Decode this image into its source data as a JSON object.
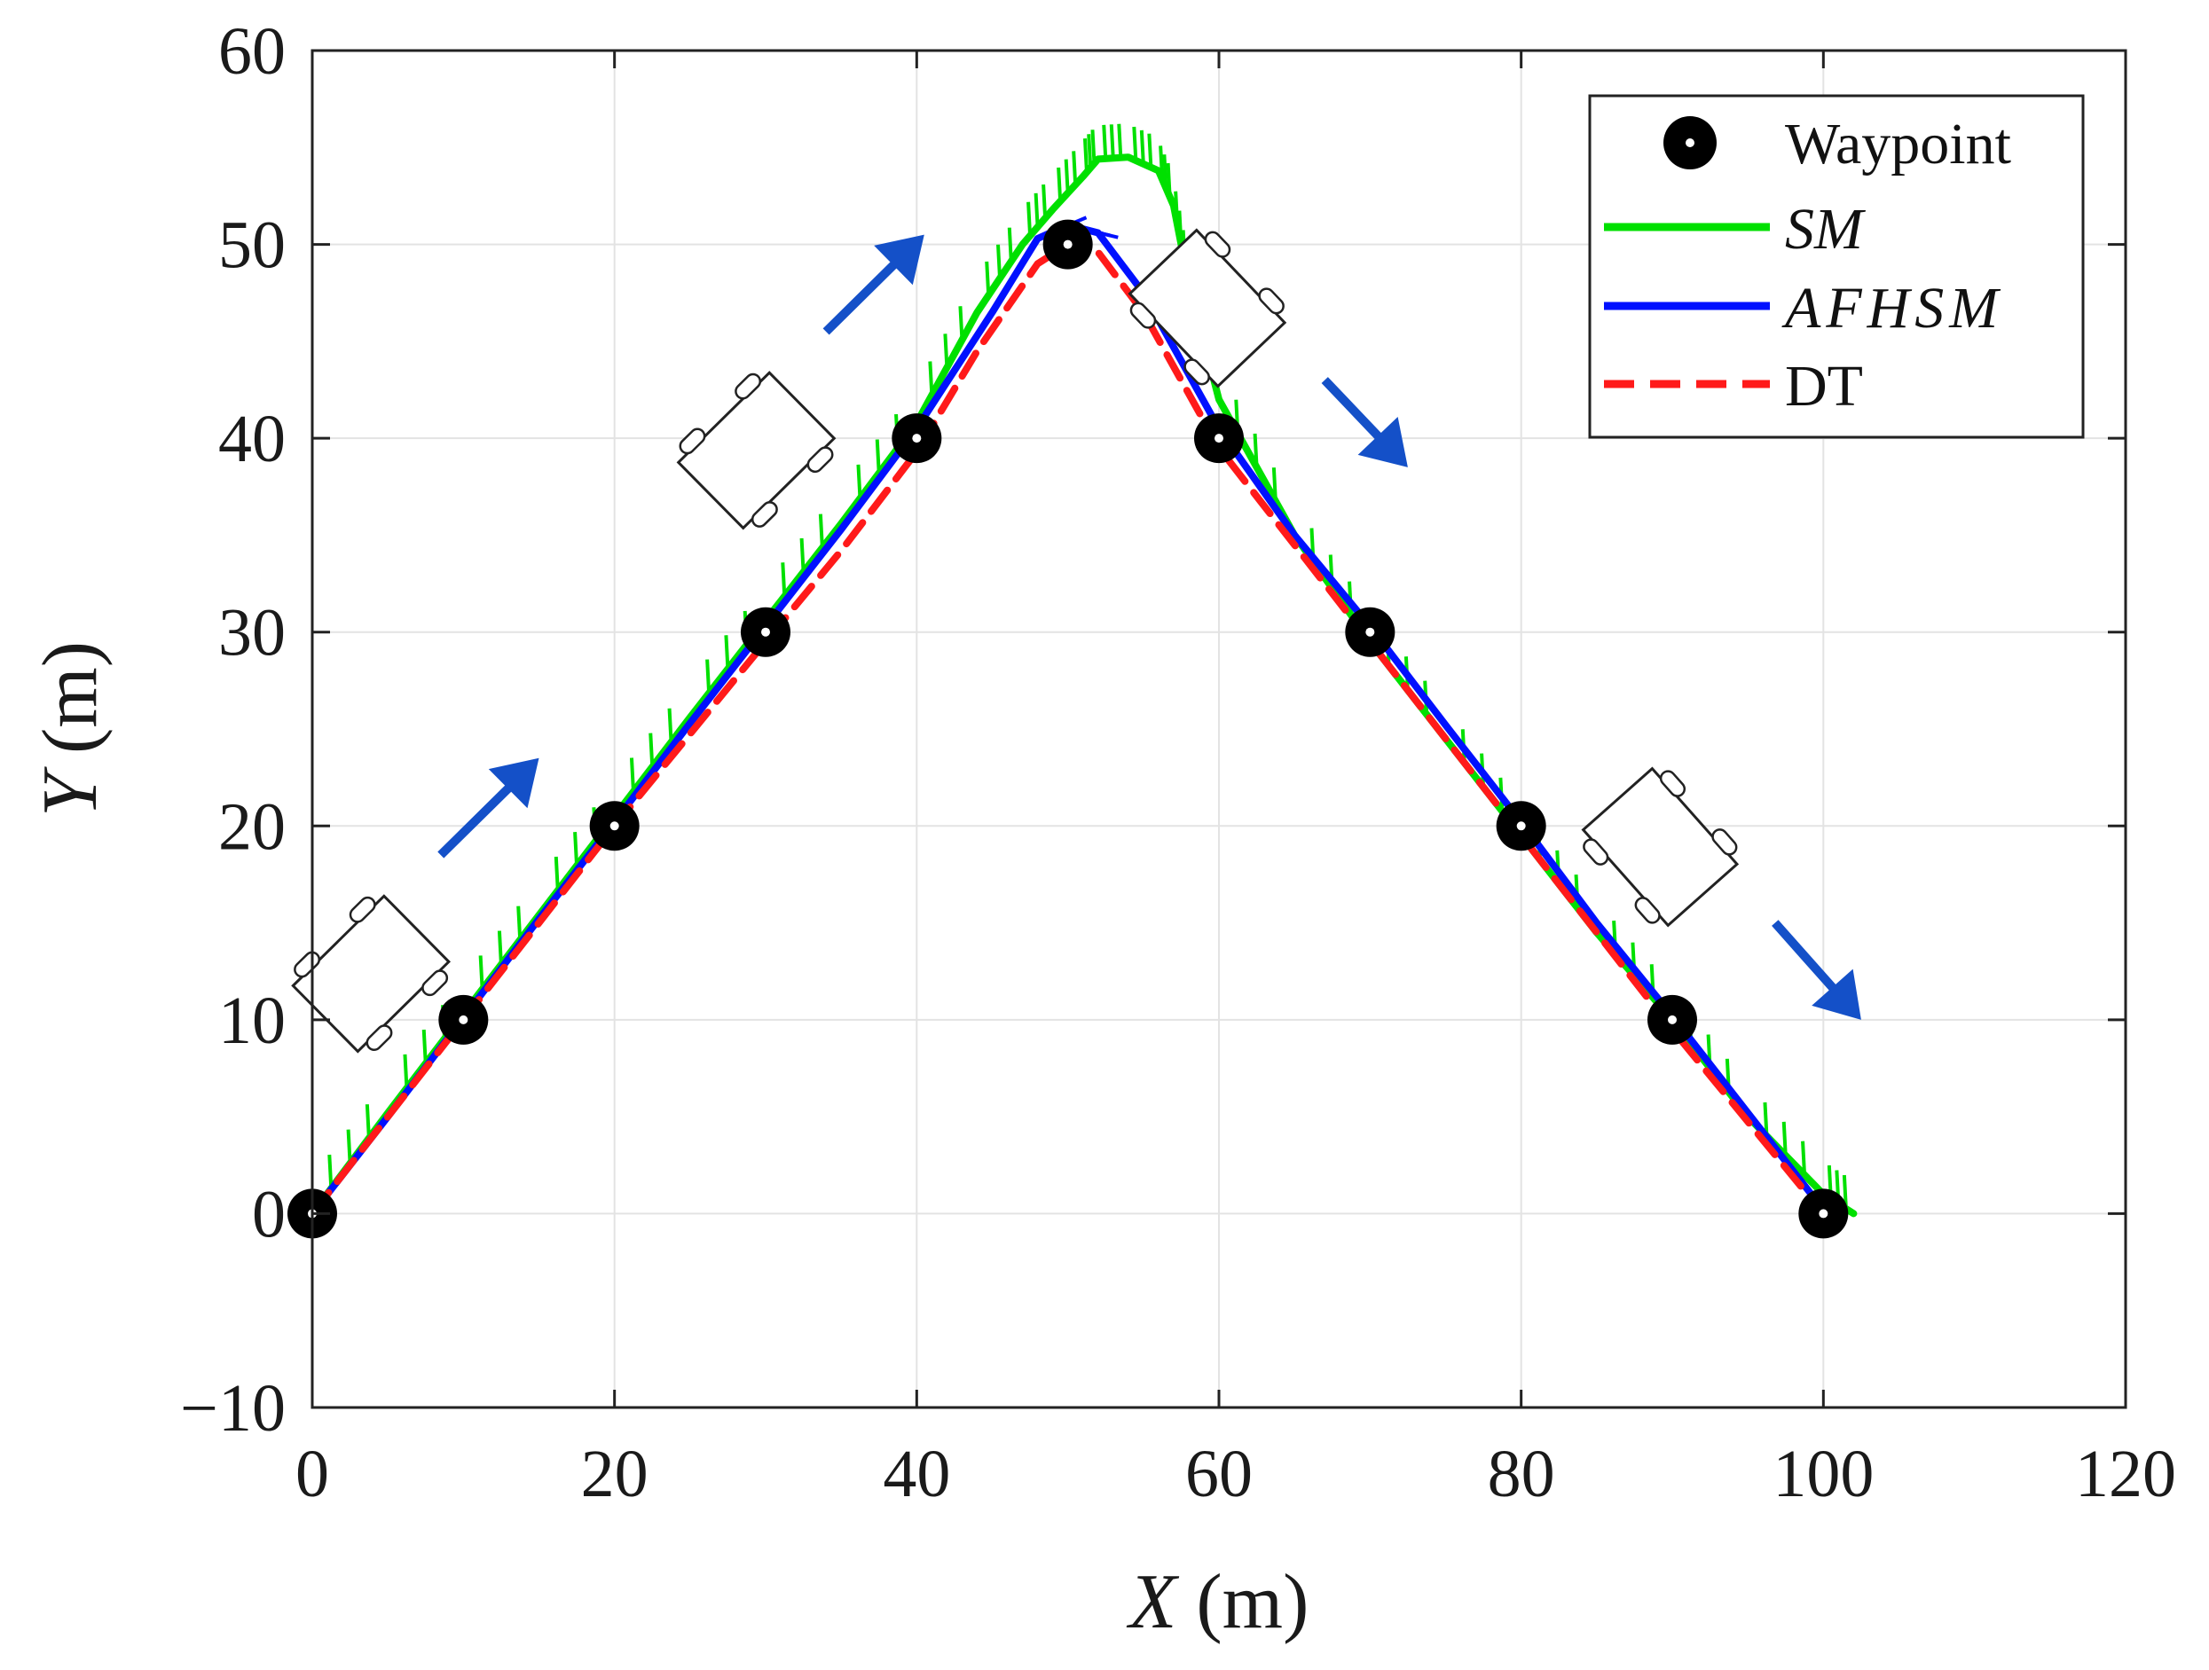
{
  "chart_data": {
    "type": "line",
    "title": "",
    "xlabel": {
      "var": "X",
      "unit": "(m)"
    },
    "ylabel": {
      "var": "Y",
      "unit": "(m)"
    },
    "xlim": [
      0,
      120
    ],
    "ylim": [
      -10,
      60
    ],
    "xticks": [
      "0",
      "20",
      "40",
      "60",
      "80",
      "100",
      "120"
    ],
    "yticks": [
      "−10",
      "0",
      "10",
      "20",
      "30",
      "40",
      "50",
      "60"
    ],
    "xtick_values": [
      0,
      20,
      40,
      60,
      80,
      100,
      120
    ],
    "ytick_values": [
      -10,
      0,
      10,
      20,
      30,
      40,
      50,
      60
    ],
    "grid": true,
    "legend": {
      "position": "top-right",
      "entries": [
        "Waypoint",
        "SM",
        "AFHSM",
        "DT"
      ]
    },
    "waypoints": {
      "name": "Waypoint",
      "x": [
        0,
        10,
        20,
        30,
        40,
        50,
        60,
        70,
        80,
        90,
        100
      ],
      "y": [
        0,
        10,
        20,
        30,
        40,
        50,
        40,
        30,
        20,
        10,
        0
      ]
    },
    "series": [
      {
        "name": "SM",
        "color": "#00e000",
        "style": "solid",
        "x": [
          0,
          5,
          10,
          15,
          20,
          25,
          30,
          35,
          40,
          44,
          47,
          49,
          51,
          52,
          54,
          56,
          57,
          58,
          60,
          65,
          70,
          75,
          80,
          85,
          90,
          95,
          100,
          102
        ],
        "y": [
          0,
          5.2,
          10.3,
          15.4,
          20.5,
          25.6,
          30.6,
          35.6,
          40.8,
          46.5,
          50.0,
          51.8,
          53.5,
          54.4,
          54.5,
          53.8,
          52.0,
          48.0,
          42.0,
          35.0,
          29.5,
          24.5,
          19.5,
          14.5,
          10.0,
          5.0,
          1.0,
          0
        ]
      },
      {
        "name": "AFHSM",
        "color": "#0010ff",
        "style": "solid",
        "x": [
          0,
          5,
          10,
          15,
          20,
          25,
          30,
          35,
          40,
          45,
          48,
          50,
          52,
          55,
          60,
          65,
          70,
          75,
          80,
          85,
          90,
          95,
          100
        ],
        "y": [
          0,
          5.0,
          10.1,
          15.2,
          20.2,
          25.3,
          30.3,
          35.3,
          40.5,
          46.5,
          50.3,
          51.0,
          50.6,
          47.5,
          40.5,
          35.0,
          30.3,
          25.2,
          20.2,
          15.0,
          10.2,
          5.2,
          0.2
        ]
      },
      {
        "name": "DT",
        "color": "#ff1a1a",
        "style": "dashed",
        "x": [
          0,
          10,
          20,
          30,
          35,
          40,
          44,
          48,
          50,
          52,
          55,
          60,
          70,
          80,
          90,
          100
        ],
        "y": [
          0,
          10,
          20,
          29.5,
          34.2,
          39.3,
          44.5,
          49.0,
          50.0,
          49.6,
          46.5,
          39.5,
          29.5,
          19.5,
          9.5,
          0
        ]
      }
    ],
    "annotations": [
      {
        "type": "robot-direction-arrow",
        "from": [
          8.5,
          18.5
        ],
        "to": [
          15,
          23.5
        ]
      },
      {
        "type": "robot-direction-arrow",
        "from": [
          34,
          45.5
        ],
        "to": [
          40.5,
          50.5
        ]
      },
      {
        "type": "robot-direction-arrow",
        "from": [
          67,
          43
        ],
        "to": [
          72.5,
          38.5
        ]
      },
      {
        "type": "robot-direction-arrow",
        "from": [
          96.8,
          15
        ],
        "to": [
          102.5,
          10
        ]
      }
    ]
  }
}
